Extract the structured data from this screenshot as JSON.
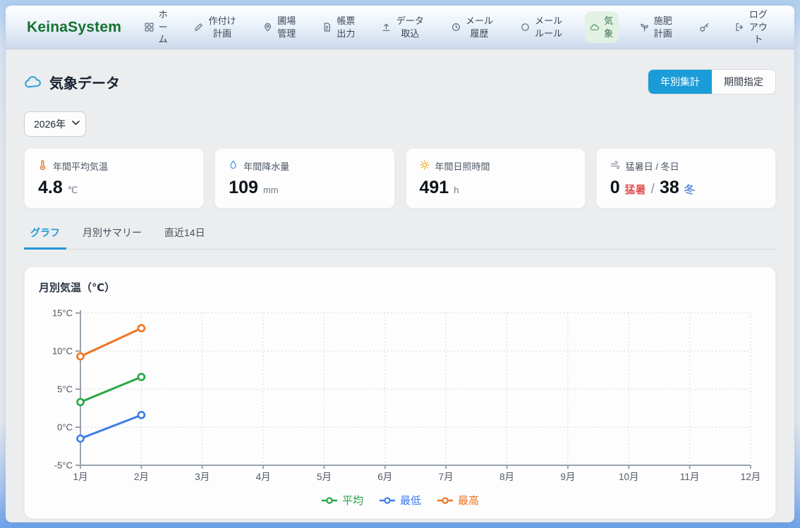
{
  "brand": "KeinaSystem",
  "nav": {
    "items": [
      {
        "label": "ホーム",
        "icon": "grid-icon"
      },
      {
        "label": "作付け計画",
        "icon": "pencil-icon"
      },
      {
        "label": "圃場管理",
        "icon": "pin-icon"
      },
      {
        "label": "帳票出力",
        "icon": "document-icon"
      },
      {
        "label": "データ取込",
        "icon": "upload-icon"
      },
      {
        "label": "メール履歴",
        "icon": "history-icon"
      },
      {
        "label": "メールルール",
        "icon": "circle-icon"
      },
      {
        "label": "気象",
        "icon": "cloud-icon",
        "active": true
      },
      {
        "label": "施肥計画",
        "icon": "seedling-icon"
      },
      {
        "label": "",
        "icon": "key-icon"
      },
      {
        "label": "ログアウト",
        "icon": "logout-icon"
      }
    ]
  },
  "page": {
    "title": "気象データ",
    "view_toggle": {
      "yearly_label": "年別集計",
      "period_label": "期間指定",
      "active": "年別集計"
    },
    "year_select": {
      "value": "2026年"
    }
  },
  "stats": [
    {
      "label": "年間平均気温",
      "value": "4.8",
      "unit": "℃"
    },
    {
      "label": "年間降水量",
      "value": "109",
      "unit": "mm"
    },
    {
      "label": "年間日照時間",
      "value": "491",
      "unit": "h"
    },
    {
      "label": "猛暑日 / 冬日",
      "hot_value": "0",
      "hot_label": "猛暑",
      "separator": "/",
      "cold_value": "38",
      "cold_label": "冬"
    }
  ],
  "tabs": [
    {
      "label": "グラフ",
      "active": true
    },
    {
      "label": "月別サマリー",
      "active": false
    },
    {
      "label": "直近14日",
      "active": false
    }
  ],
  "chart_data": {
    "type": "line",
    "title": "月別気温（℃）",
    "categories": [
      "1月",
      "2月",
      "3月",
      "4月",
      "5月",
      "6月",
      "7月",
      "8月",
      "9月",
      "10月",
      "11月",
      "12月"
    ],
    "series": [
      {
        "name": "平均",
        "color": "#27a844",
        "values": [
          3.3,
          6.6
        ]
      },
      {
        "name": "最低",
        "color": "#3f7de8",
        "values": [
          -1.5,
          1.6
        ]
      },
      {
        "name": "最高",
        "color": "#ee7521",
        "values": [
          9.3,
          13.0
        ]
      }
    ],
    "ylim": [
      -5,
      15
    ],
    "ytick_step": 5,
    "ytick_suffix": "°C",
    "grid": true,
    "legend_position": "bottom"
  },
  "colors": {
    "accent_blue": "#1b9cd8",
    "brand_green": "#15712f",
    "hot_red": "#e05858",
    "cold_blue": "#5f8edb"
  }
}
